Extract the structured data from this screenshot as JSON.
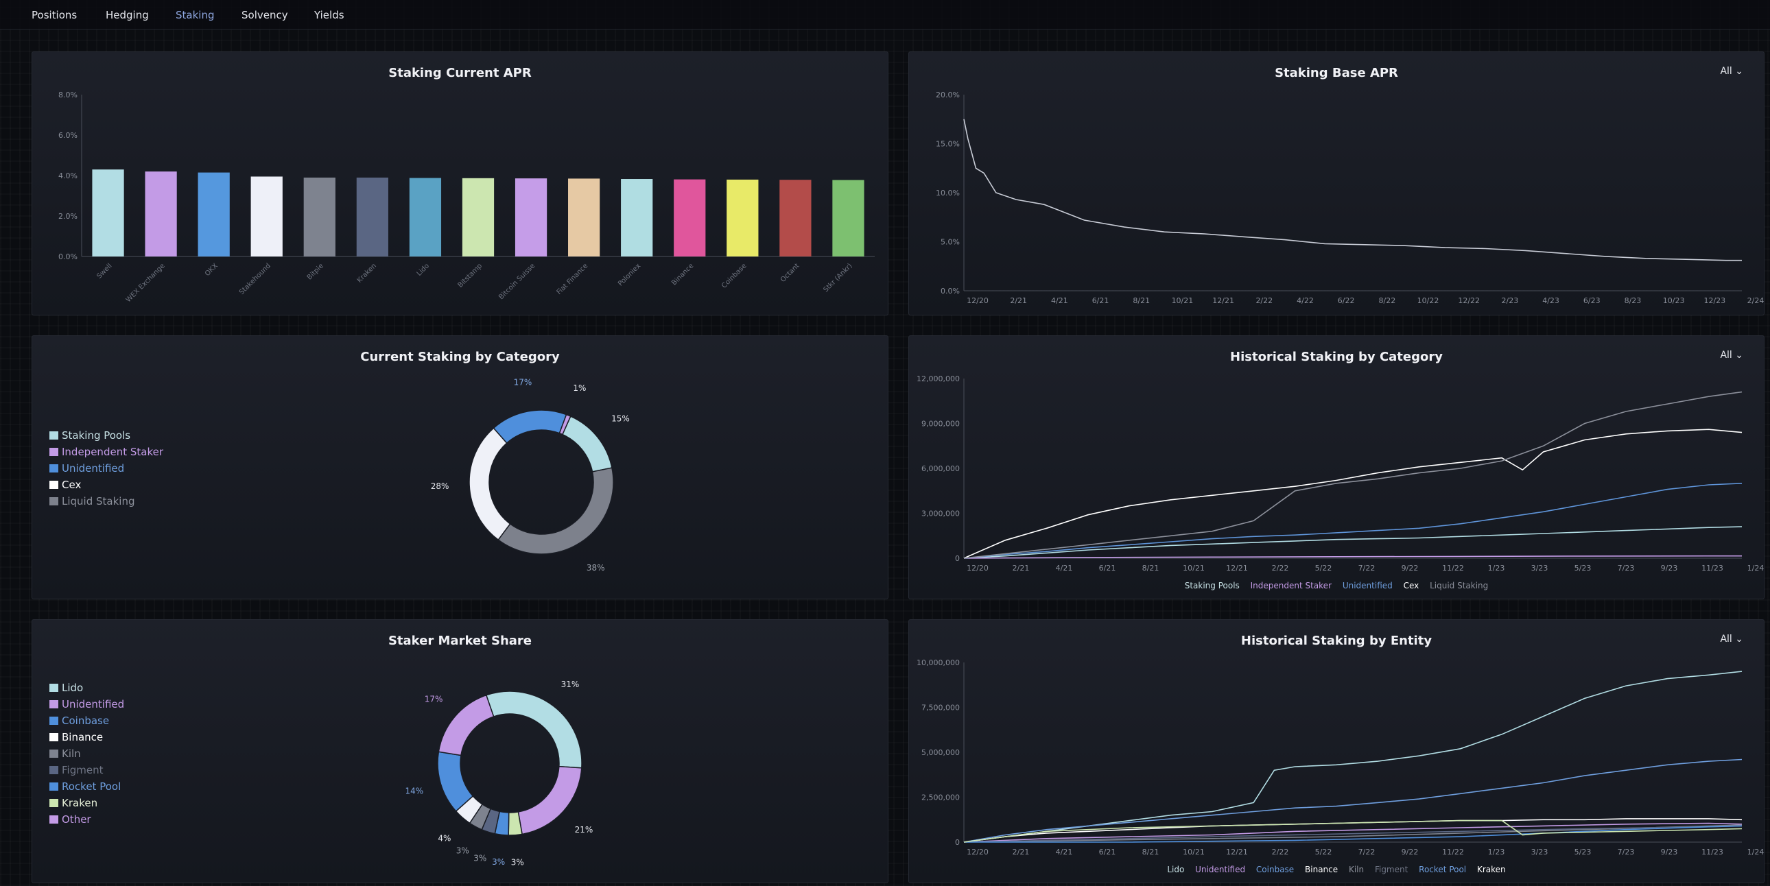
{
  "nav": {
    "tabs": [
      {
        "label": "Positions",
        "active": false
      },
      {
        "label": "Hedging",
        "active": false
      },
      {
        "label": "Staking",
        "active": true
      },
      {
        "label": "Solvency",
        "active": false
      },
      {
        "label": "Yields",
        "active": false
      }
    ]
  },
  "dropdown_label": "All",
  "chart_data": [
    {
      "id": "current_apr",
      "type": "bar",
      "title": "Staking Current APR",
      "categories": [
        "Swell",
        "WEX Exchange",
        "OKX",
        "Stakehound",
        "Bitpie",
        "Kraken",
        "Lido",
        "Bitstamp",
        "Bitcoin Suisse",
        "Fiat Finance",
        "Poloniex",
        "Binance",
        "Coinbase",
        "Octant",
        "Stkr (Ankr)"
      ],
      "values": [
        4.3,
        4.2,
        4.15,
        3.95,
        3.9,
        3.9,
        3.88,
        3.87,
        3.86,
        3.85,
        3.83,
        3.81,
        3.8,
        3.79,
        3.78
      ],
      "colors": [
        "#b2dde4",
        "#c39be6",
        "#5598de",
        "#eef0f8",
        "#7e838f",
        "#5a6683",
        "#5aa2c4",
        "#cce6b0",
        "#c59de8",
        "#e6c9a4",
        "#b0dde2",
        "#e0569c",
        "#e8ea68",
        "#b34c4a",
        "#7dc070"
      ],
      "yticks": [
        "0.0%",
        "2.0%",
        "4.0%",
        "6.0%",
        "8.0%"
      ],
      "ylim": [
        0,
        8
      ]
    },
    {
      "id": "base_apr",
      "type": "line",
      "title": "Staking Base APR",
      "xticks": [
        "12/20",
        "2/21",
        "4/21",
        "6/21",
        "8/21",
        "10/21",
        "12/21",
        "2/22",
        "4/22",
        "6/22",
        "8/22",
        "10/22",
        "12/22",
        "2/23",
        "4/23",
        "6/23",
        "8/23",
        "10/23",
        "12/23",
        "2/24"
      ],
      "yticks": [
        "0.0%",
        "5.0%",
        "10.0%",
        "15.0%",
        "20.0%"
      ],
      "ylim": [
        0,
        20
      ],
      "series": [
        {
          "name": "Base APR",
          "color": "#c8ccd6",
          "x": [
            0,
            0.1,
            0.3,
            0.5,
            0.8,
            1.3,
            2,
            3,
            4,
            5,
            6,
            7,
            8,
            9,
            10,
            11,
            12,
            13,
            14,
            15,
            16,
            17,
            18,
            19,
            19.4
          ],
          "values": [
            17.5,
            15.5,
            12.5,
            12,
            10,
            9.3,
            8.8,
            7.2,
            6.5,
            6,
            5.8,
            5.5,
            5.2,
            4.8,
            4.7,
            4.6,
            4.4,
            4.3,
            4.1,
            3.8,
            3.5,
            3.3,
            3.2,
            3.1,
            3.1
          ]
        }
      ]
    },
    {
      "id": "category_pie",
      "type": "pie",
      "title": "Current Staking by Category",
      "labels": [
        "Staking Pools",
        "Liquid Staking",
        "Cex",
        "Unidentified",
        "Independent Staker"
      ],
      "values": [
        15,
        38,
        28,
        17,
        1
      ],
      "slice_colors": [
        "#b2dde4",
        "#7d818c",
        "#eff1f8",
        "#4f8fdc",
        "#c39be6"
      ],
      "slice_labels": [
        "15%",
        "38%",
        "28%",
        "17%",
        "1%"
      ],
      "label_colors": [
        "#e6e8ee",
        "#9aa0ab",
        "#e6e8ee",
        "#7fa6e0",
        "#e6e8ee"
      ],
      "legend": [
        {
          "label": "Staking Pools",
          "color": "#b2dde4"
        },
        {
          "label": "Independent Staker",
          "color": "#c39be6"
        },
        {
          "label": "Unidentified",
          "color": "#4f8fdc"
        },
        {
          "label": "Cex",
          "color": "#ffffff"
        },
        {
          "label": "Liquid Staking",
          "color": "#7d818c"
        }
      ]
    },
    {
      "id": "hist_category",
      "type": "line",
      "title": "Historical Staking by Category",
      "xticks": [
        "12/20",
        "2/21",
        "4/21",
        "6/21",
        "8/21",
        "10/21",
        "12/21",
        "2/22",
        "5/22",
        "7/22",
        "9/22",
        "11/22",
        "1/23",
        "3/23",
        "5/23",
        "7/23",
        "9/23",
        "11/23",
        "1/24"
      ],
      "yticks": [
        "0",
        "3,000,000",
        "6,000,000",
        "9,000,000",
        "12,000,000"
      ],
      "ylim": [
        0,
        12000000
      ],
      "series": [
        {
          "name": "Staking Pools",
          "color": "#b2dde4",
          "x": [
            0,
            1,
            2,
            3,
            4,
            5,
            6,
            7,
            8,
            9,
            10,
            11,
            12,
            13,
            14,
            15,
            16,
            17,
            18,
            18.8
          ],
          "values": [
            0,
            150000,
            350000,
            550000,
            700000,
            850000,
            950000,
            1050000,
            1150000,
            1250000,
            1300000,
            1350000,
            1450000,
            1550000,
            1650000,
            1750000,
            1850000,
            1950000,
            2050000,
            2100000
          ]
        },
        {
          "name": "Independent Staker",
          "color": "#c39be6",
          "x": [
            0,
            3,
            6,
            9,
            12,
            15,
            18,
            18.8
          ],
          "values": [
            0,
            50000,
            80000,
            100000,
            120000,
            140000,
            150000,
            150000
          ]
        },
        {
          "name": "Unidentified",
          "color": "#5f95da",
          "x": [
            0,
            1,
            2,
            3,
            4,
            5,
            6,
            7,
            8,
            9,
            10,
            11,
            12,
            13,
            14,
            15,
            16,
            17,
            18,
            18.8
          ],
          "values": [
            0,
            250000,
            450000,
            700000,
            900000,
            1100000,
            1300000,
            1450000,
            1550000,
            1700000,
            1850000,
            2000000,
            2300000,
            2700000,
            3100000,
            3600000,
            4100000,
            4600000,
            4900000,
            5000000
          ]
        },
        {
          "name": "Cex",
          "color": "#ffffff",
          "x": [
            0,
            1,
            2,
            3,
            4,
            5,
            6,
            7,
            8,
            9,
            10,
            11,
            12,
            13,
            13.5,
            14,
            15,
            16,
            17,
            18,
            18.8
          ],
          "values": [
            0,
            1200000,
            2000000,
            2900000,
            3500000,
            3900000,
            4200000,
            4500000,
            4800000,
            5200000,
            5700000,
            6100000,
            6400000,
            6700000,
            5900000,
            7100000,
            7900000,
            8300000,
            8500000,
            8600000,
            8400000
          ]
        },
        {
          "name": "Liquid Staking",
          "color": "#8c909b",
          "x": [
            0,
            1,
            2,
            3,
            4,
            5,
            6,
            7,
            8,
            9,
            10,
            11,
            12,
            13,
            14,
            15,
            16,
            17,
            18,
            18.8
          ],
          "values": [
            0,
            300000,
            600000,
            900000,
            1200000,
            1500000,
            1800000,
            2500000,
            4500000,
            5000000,
            5300000,
            5700000,
            6000000,
            6500000,
            7500000,
            9000000,
            9800000,
            10300000,
            10800000,
            11100000
          ]
        }
      ],
      "legend": [
        {
          "label": "Staking Pools",
          "color": "#c8e2e6"
        },
        {
          "label": "Independent Staker",
          "color": "#c39be6"
        },
        {
          "label": "Unidentified",
          "color": "#6f9fdf"
        },
        {
          "label": "Cex",
          "color": "#ffffff"
        },
        {
          "label": "Liquid Staking",
          "color": "#8c909b"
        }
      ]
    },
    {
      "id": "market_share",
      "type": "pie",
      "title": "Staker Market Share",
      "labels": [
        "Lido",
        "Unidentified",
        "Kraken",
        "Rocket Pool",
        "Figment",
        "Kiln",
        "Binance",
        "Coinbase",
        "Other"
      ],
      "values": [
        31,
        21,
        3,
        3,
        3,
        3,
        4,
        14,
        17
      ],
      "slice_colors": [
        "#b2dde4",
        "#c39be6",
        "#cce6b0",
        "#4f8fdc",
        "#5a6683",
        "#7e838f",
        "#eff1f8",
        "#4f8fdc",
        "#c39be6"
      ],
      "slice_labels": [
        "31%",
        "21%",
        "3%",
        "3%",
        "3%",
        "3%",
        "4%",
        "14%",
        "17%"
      ],
      "label_colors": [
        "#e6e8ee",
        "#e6e8ee",
        "#e6e8ee",
        "#7fa6e0",
        "#9aa0ab",
        "#9aa0ab",
        "#e6e8ee",
        "#7fa6e0",
        "#c39be6"
      ],
      "legend": [
        {
          "label": "Lido",
          "color": "#b2dde4"
        },
        {
          "label": "Unidentified",
          "color": "#c39be6"
        },
        {
          "label": "Coinbase",
          "color": "#4f8fdc"
        },
        {
          "label": "Binance",
          "color": "#ffffff"
        },
        {
          "label": "Kiln",
          "color": "#7e838f"
        },
        {
          "label": "Figment",
          "color": "#5a6683"
        },
        {
          "label": "Rocket Pool",
          "color": "#4f8fdc"
        },
        {
          "label": "Kraken",
          "color": "#cce6b0"
        },
        {
          "label": "Other",
          "color": "#c39be6"
        }
      ]
    },
    {
      "id": "hist_entity",
      "type": "line",
      "title": "Historical Staking by Entity",
      "xticks": [
        "12/20",
        "2/21",
        "4/21",
        "6/21",
        "8/21",
        "10/21",
        "12/21",
        "2/22",
        "5/22",
        "7/22",
        "9/22",
        "11/22",
        "1/23",
        "3/23",
        "5/23",
        "7/23",
        "9/23",
        "11/23",
        "1/24"
      ],
      "yticks": [
        "0",
        "2,500,000",
        "5,000,000",
        "7,500,000",
        "10,000,000"
      ],
      "ylim": [
        0,
        10000000
      ],
      "series": [
        {
          "name": "Lido",
          "color": "#b2dde4",
          "x": [
            0,
            1,
            2,
            3,
            4,
            5,
            6,
            7,
            7.5,
            8,
            9,
            10,
            11,
            12,
            13,
            14,
            15,
            16,
            17,
            18,
            18.8
          ],
          "values": [
            0,
            300000,
            600000,
            900000,
            1200000,
            1500000,
            1700000,
            2200000,
            4000000,
            4200000,
            4300000,
            4500000,
            4800000,
            5200000,
            6000000,
            7000000,
            8000000,
            8700000,
            9100000,
            9300000,
            9500000
          ]
        },
        {
          "name": "Unidentified",
          "color": "#c39be6",
          "x": [
            0,
            2,
            4,
            6,
            8,
            10,
            12,
            14,
            16,
            18,
            18.8
          ],
          "values": [
            0,
            200000,
            300000,
            400000,
            600000,
            700000,
            800000,
            900000,
            1000000,
            1050000,
            1000000
          ]
        },
        {
          "name": "Coinbase",
          "color": "#6f9fdf",
          "x": [
            0,
            1,
            2,
            3,
            4,
            5,
            6,
            7,
            8,
            9,
            10,
            11,
            12,
            13,
            14,
            15,
            16,
            17,
            18,
            18.8
          ],
          "values": [
            0,
            400000,
            700000,
            900000,
            1100000,
            1300000,
            1500000,
            1700000,
            1900000,
            2000000,
            2200000,
            2400000,
            2700000,
            3000000,
            3300000,
            3700000,
            4000000,
            4300000,
            4500000,
            4600000
          ]
        },
        {
          "name": "Binance",
          "color": "#ffffff",
          "x": [
            0,
            1,
            2,
            3,
            4,
            5,
            6,
            7,
            8,
            9,
            10,
            11,
            12,
            13,
            14,
            15,
            16,
            17,
            18,
            18.8
          ],
          "values": [
            0,
            300000,
            500000,
            600000,
            700000,
            800000,
            900000,
            950000,
            1000000,
            1050000,
            1100000,
            1150000,
            1200000,
            1200000,
            1250000,
            1250000,
            1300000,
            1300000,
            1300000,
            1250000
          ]
        },
        {
          "name": "Kiln",
          "color": "#7e838f",
          "x": [
            0,
            3,
            6,
            9,
            12,
            15,
            18,
            18.8
          ],
          "values": [
            0,
            100000,
            200000,
            300000,
            500000,
            700000,
            900000,
            950000
          ]
        },
        {
          "name": "Figment",
          "color": "#5a6683",
          "x": [
            0,
            3,
            6,
            9,
            12,
            15,
            18,
            18.8
          ],
          "values": [
            0,
            150000,
            300000,
            450000,
            600000,
            750000,
            850000,
            900000
          ]
        },
        {
          "name": "Rocket Pool",
          "color": "#4f8fdc",
          "x": [
            0,
            4,
            8,
            12,
            14,
            16,
            18,
            18.8
          ],
          "values": [
            0,
            0,
            100000,
            300000,
            500000,
            700000,
            850000,
            900000
          ]
        },
        {
          "name": "Kraken",
          "color": "#cce6b0",
          "x": [
            0,
            2,
            4,
            6,
            8,
            10,
            12,
            13,
            13.5,
            14,
            16,
            18,
            18.8
          ],
          "values": [
            0,
            600000,
            800000,
            900000,
            1000000,
            1100000,
            1200000,
            1200000,
            400000,
            500000,
            600000,
            700000,
            750000
          ]
        }
      ],
      "legend": [
        {
          "label": "Lido",
          "color": "#c8e2e6"
        },
        {
          "label": "Unidentified",
          "color": "#c39be6"
        },
        {
          "label": "Coinbase",
          "color": "#6f9fdf"
        },
        {
          "label": "Binance",
          "color": "#ffffff"
        },
        {
          "label": "Kiln",
          "color": "#7e838f"
        },
        {
          "label": "Figment",
          "color": "#5a6683"
        },
        {
          "label": "Rocket Pool",
          "color": "#6f9fdf"
        },
        {
          "label": "Kraken",
          "color": "#ffffff"
        }
      ]
    }
  ]
}
